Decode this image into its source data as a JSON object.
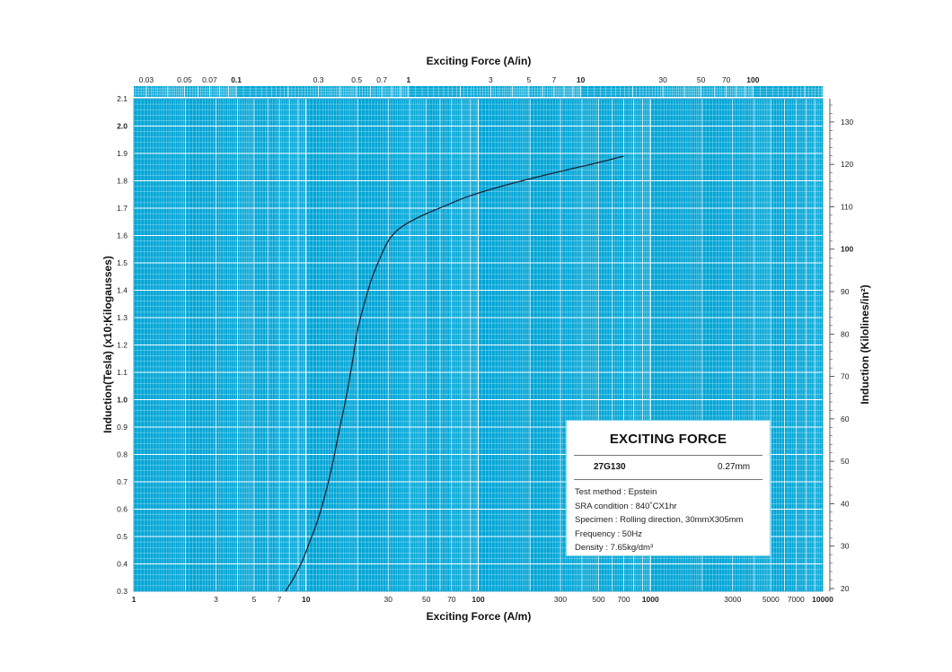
{
  "chart_data": {
    "type": "line",
    "x_scale": "log",
    "top_axis_title": "Exciting Force (A/in)",
    "bottom_axis_title": "Exciting Force (A/m)",
    "left_axis_title": "Induction(Tesla) (x10;Kilogausses)",
    "right_axis_title": "Induction (Kilolines/in²)",
    "xlim": [
      1,
      10000
    ],
    "ylim": [
      0.3,
      2.1
    ],
    "grid": true,
    "bottom_ticks": [
      {
        "label": "1",
        "value": 1,
        "bold": true
      },
      {
        "label": "3",
        "value": 3,
        "bold": false
      },
      {
        "label": "5",
        "value": 5,
        "bold": false
      },
      {
        "label": "7",
        "value": 7,
        "bold": false
      },
      {
        "label": "10",
        "value": 10,
        "bold": true
      },
      {
        "label": "30",
        "value": 30,
        "bold": false
      },
      {
        "label": "50",
        "value": 50,
        "bold": false
      },
      {
        "label": "70",
        "value": 70,
        "bold": false
      },
      {
        "label": "100",
        "value": 100,
        "bold": true
      },
      {
        "label": "300",
        "value": 300,
        "bold": false
      },
      {
        "label": "500",
        "value": 500,
        "bold": false
      },
      {
        "label": "700",
        "value": 700,
        "bold": false
      },
      {
        "label": "1000",
        "value": 1000,
        "bold": true
      },
      {
        "label": "3000",
        "value": 3000,
        "bold": false
      },
      {
        "label": "5000",
        "value": 5000,
        "bold": false
      },
      {
        "label": "7000",
        "value": 7000,
        "bold": false
      },
      {
        "label": "10000",
        "value": 10000,
        "bold": true
      }
    ],
    "top_ticks": [
      {
        "label": "0.03",
        "value": 0.03,
        "bold": false
      },
      {
        "label": "0.05",
        "value": 0.05,
        "bold": false
      },
      {
        "label": "0.07",
        "value": 0.07,
        "bold": false
      },
      {
        "label": "0.1",
        "value": 0.1,
        "bold": true
      },
      {
        "label": "0.3",
        "value": 0.3,
        "bold": false
      },
      {
        "label": "0.5",
        "value": 0.5,
        "bold": false
      },
      {
        "label": "0.7",
        "value": 0.7,
        "bold": false
      },
      {
        "label": "1",
        "value": 1,
        "bold": true
      },
      {
        "label": "3",
        "value": 3,
        "bold": false
      },
      {
        "label": "5",
        "value": 5,
        "bold": false
      },
      {
        "label": "7",
        "value": 7,
        "bold": false
      },
      {
        "label": "10",
        "value": 10,
        "bold": true
      },
      {
        "label": "30",
        "value": 30,
        "bold": false
      },
      {
        "label": "50",
        "value": 50,
        "bold": false
      },
      {
        "label": "70",
        "value": 70,
        "bold": false
      },
      {
        "label": "100",
        "value": 100,
        "bold": true
      }
    ],
    "left_ticks": [
      {
        "label": "0.3",
        "value": 0.3,
        "bold": false
      },
      {
        "label": "0.4",
        "value": 0.4,
        "bold": false
      },
      {
        "label": "0.5",
        "value": 0.5,
        "bold": false
      },
      {
        "label": "0.6",
        "value": 0.6,
        "bold": false
      },
      {
        "label": "0.7",
        "value": 0.7,
        "bold": false
      },
      {
        "label": "0.8",
        "value": 0.8,
        "bold": false
      },
      {
        "label": "0.9",
        "value": 0.9,
        "bold": false
      },
      {
        "label": "1.0",
        "value": 1.0,
        "bold": true
      },
      {
        "label": "1.1",
        "value": 1.1,
        "bold": false
      },
      {
        "label": "1.2",
        "value": 1.2,
        "bold": false
      },
      {
        "label": "1.3",
        "value": 1.3,
        "bold": false
      },
      {
        "label": "1.4",
        "value": 1.4,
        "bold": false
      },
      {
        "label": "1.5",
        "value": 1.5,
        "bold": false
      },
      {
        "label": "1.6",
        "value": 1.6,
        "bold": false
      },
      {
        "label": "1.7",
        "value": 1.7,
        "bold": false
      },
      {
        "label": "1.8",
        "value": 1.8,
        "bold": false
      },
      {
        "label": "1.9",
        "value": 1.9,
        "bold": false
      },
      {
        "label": "2.0",
        "value": 2.0,
        "bold": true
      },
      {
        "label": "2.1",
        "value": 2.1,
        "bold": false
      }
    ],
    "right_ticks": [
      {
        "label": "20",
        "value": 20,
        "bold": false
      },
      {
        "label": "30",
        "value": 30,
        "bold": false
      },
      {
        "label": "40",
        "value": 40,
        "bold": false
      },
      {
        "label": "50",
        "value": 50,
        "bold": false
      },
      {
        "label": "60",
        "value": 60,
        "bold": false
      },
      {
        "label": "70",
        "value": 70,
        "bold": false
      },
      {
        "label": "80",
        "value": 80,
        "bold": false
      },
      {
        "label": "90",
        "value": 90,
        "bold": false
      },
      {
        "label": "100",
        "value": 100,
        "bold": true
      },
      {
        "label": "110",
        "value": 110,
        "bold": false
      },
      {
        "label": "120",
        "value": 120,
        "bold": false
      },
      {
        "label": "130",
        "value": 130,
        "bold": false
      }
    ],
    "series": [
      {
        "x": [
          7.6,
          8.5,
          9.5,
          10.5,
          11.7,
          13,
          14.2,
          15.5,
          17,
          18.5,
          20,
          22,
          24,
          27,
          30,
          34,
          40,
          50,
          65,
          85,
          120,
          180,
          280,
          450,
          700
        ],
        "y": [
          0.3,
          0.35,
          0.41,
          0.48,
          0.56,
          0.66,
          0.76,
          0.88,
          1.0,
          1.13,
          1.26,
          1.36,
          1.44,
          1.52,
          1.58,
          1.62,
          1.65,
          1.68,
          1.71,
          1.74,
          1.77,
          1.8,
          1.83,
          1.86,
          1.89
        ]
      }
    ]
  },
  "legend": {
    "title": "EXCITING FORCE",
    "grade": "27G130",
    "thickness": "0.27mm",
    "lines": [
      "Test method : Epstein",
      "SRA condition : 840˚CX1hr",
      "Specimen : Rolling direction, 30mmX305mm",
      "Frequency : 50Hz",
      "Density : 7.65kg/dm³"
    ]
  },
  "colors": {
    "background": "#00a5d6",
    "grid": "#ffffff",
    "curve": "#1b2538"
  }
}
